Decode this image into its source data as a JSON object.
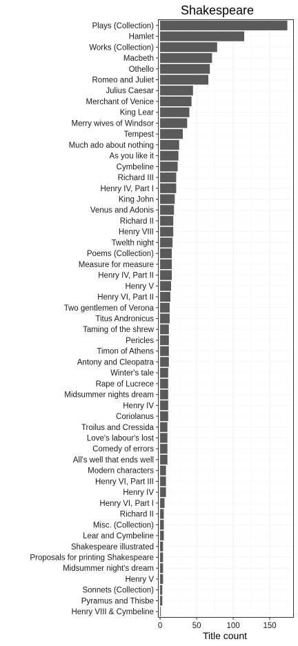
{
  "chart_data": {
    "type": "bar",
    "orientation": "horizontal",
    "title": "Shakespeare",
    "xlabel": "Title count",
    "ylabel": "",
    "xlim": [
      -2,
      182
    ],
    "xticks": [
      0,
      50,
      100,
      150
    ],
    "grid": true,
    "bar_color": "#595959",
    "categories": [
      "Plays (Collection)",
      "Hamlet",
      "Works (Collection)",
      "Macbeth",
      "Othello",
      "Romeo and Juliet",
      "Julius Caesar",
      "Merchant of Venice",
      "King Lear",
      "Merry wives of Windsor",
      "Tempest",
      "Much ado about nothing",
      "As you like it",
      "Cymbeline",
      "Richard III",
      "Henry IV, Part I",
      "King John",
      "Venus and Adonis",
      "Richard II",
      "Henry VIII",
      "Twelth night",
      "Poems (Collection)",
      "Measure for measure",
      "Henry IV, Part II",
      "Henry V ",
      "Henry VI, Part II",
      "Two gentlemen of Verona",
      "Titus Andronicus",
      "Taming of the shrew",
      "Pericles",
      "Timon of Athens",
      "Antony and Cleopatra",
      "Winter's tale",
      "Rape of Lucrece",
      "Midsummer nights dream",
      "Henry IV ",
      "Coriolanus",
      "Troilus and Cressida",
      "Love's labour's lost",
      "Comedy of errors",
      "All's well that ends well",
      "Modern characters",
      "Henry VI, Part III",
      "Henry IV",
      "Henry VI, Part I",
      "Richard II ",
      "Misc. (Collection)",
      "Lear and Cymbeline",
      "Shakespeare illustrated",
      "Proposals for printing Shakespeare",
      "Midsummer night's dream",
      "Henry V",
      "Sonnets (Collection)",
      "Pyramus and Thisbe",
      "Henry VIII & Cymbeline"
    ],
    "values": [
      174,
      115,
      78,
      71,
      68,
      66,
      45,
      43,
      40,
      37,
      31,
      26,
      25,
      24,
      22,
      22,
      20,
      19,
      18,
      18,
      17,
      16,
      16,
      16,
      15,
      14,
      13,
      13,
      12,
      12,
      12,
      12,
      11,
      11,
      11,
      11,
      11,
      10,
      10,
      10,
      10,
      8,
      8,
      8,
      6,
      5,
      5,
      5,
      4,
      4,
      4,
      4,
      3,
      3,
      1
    ]
  }
}
